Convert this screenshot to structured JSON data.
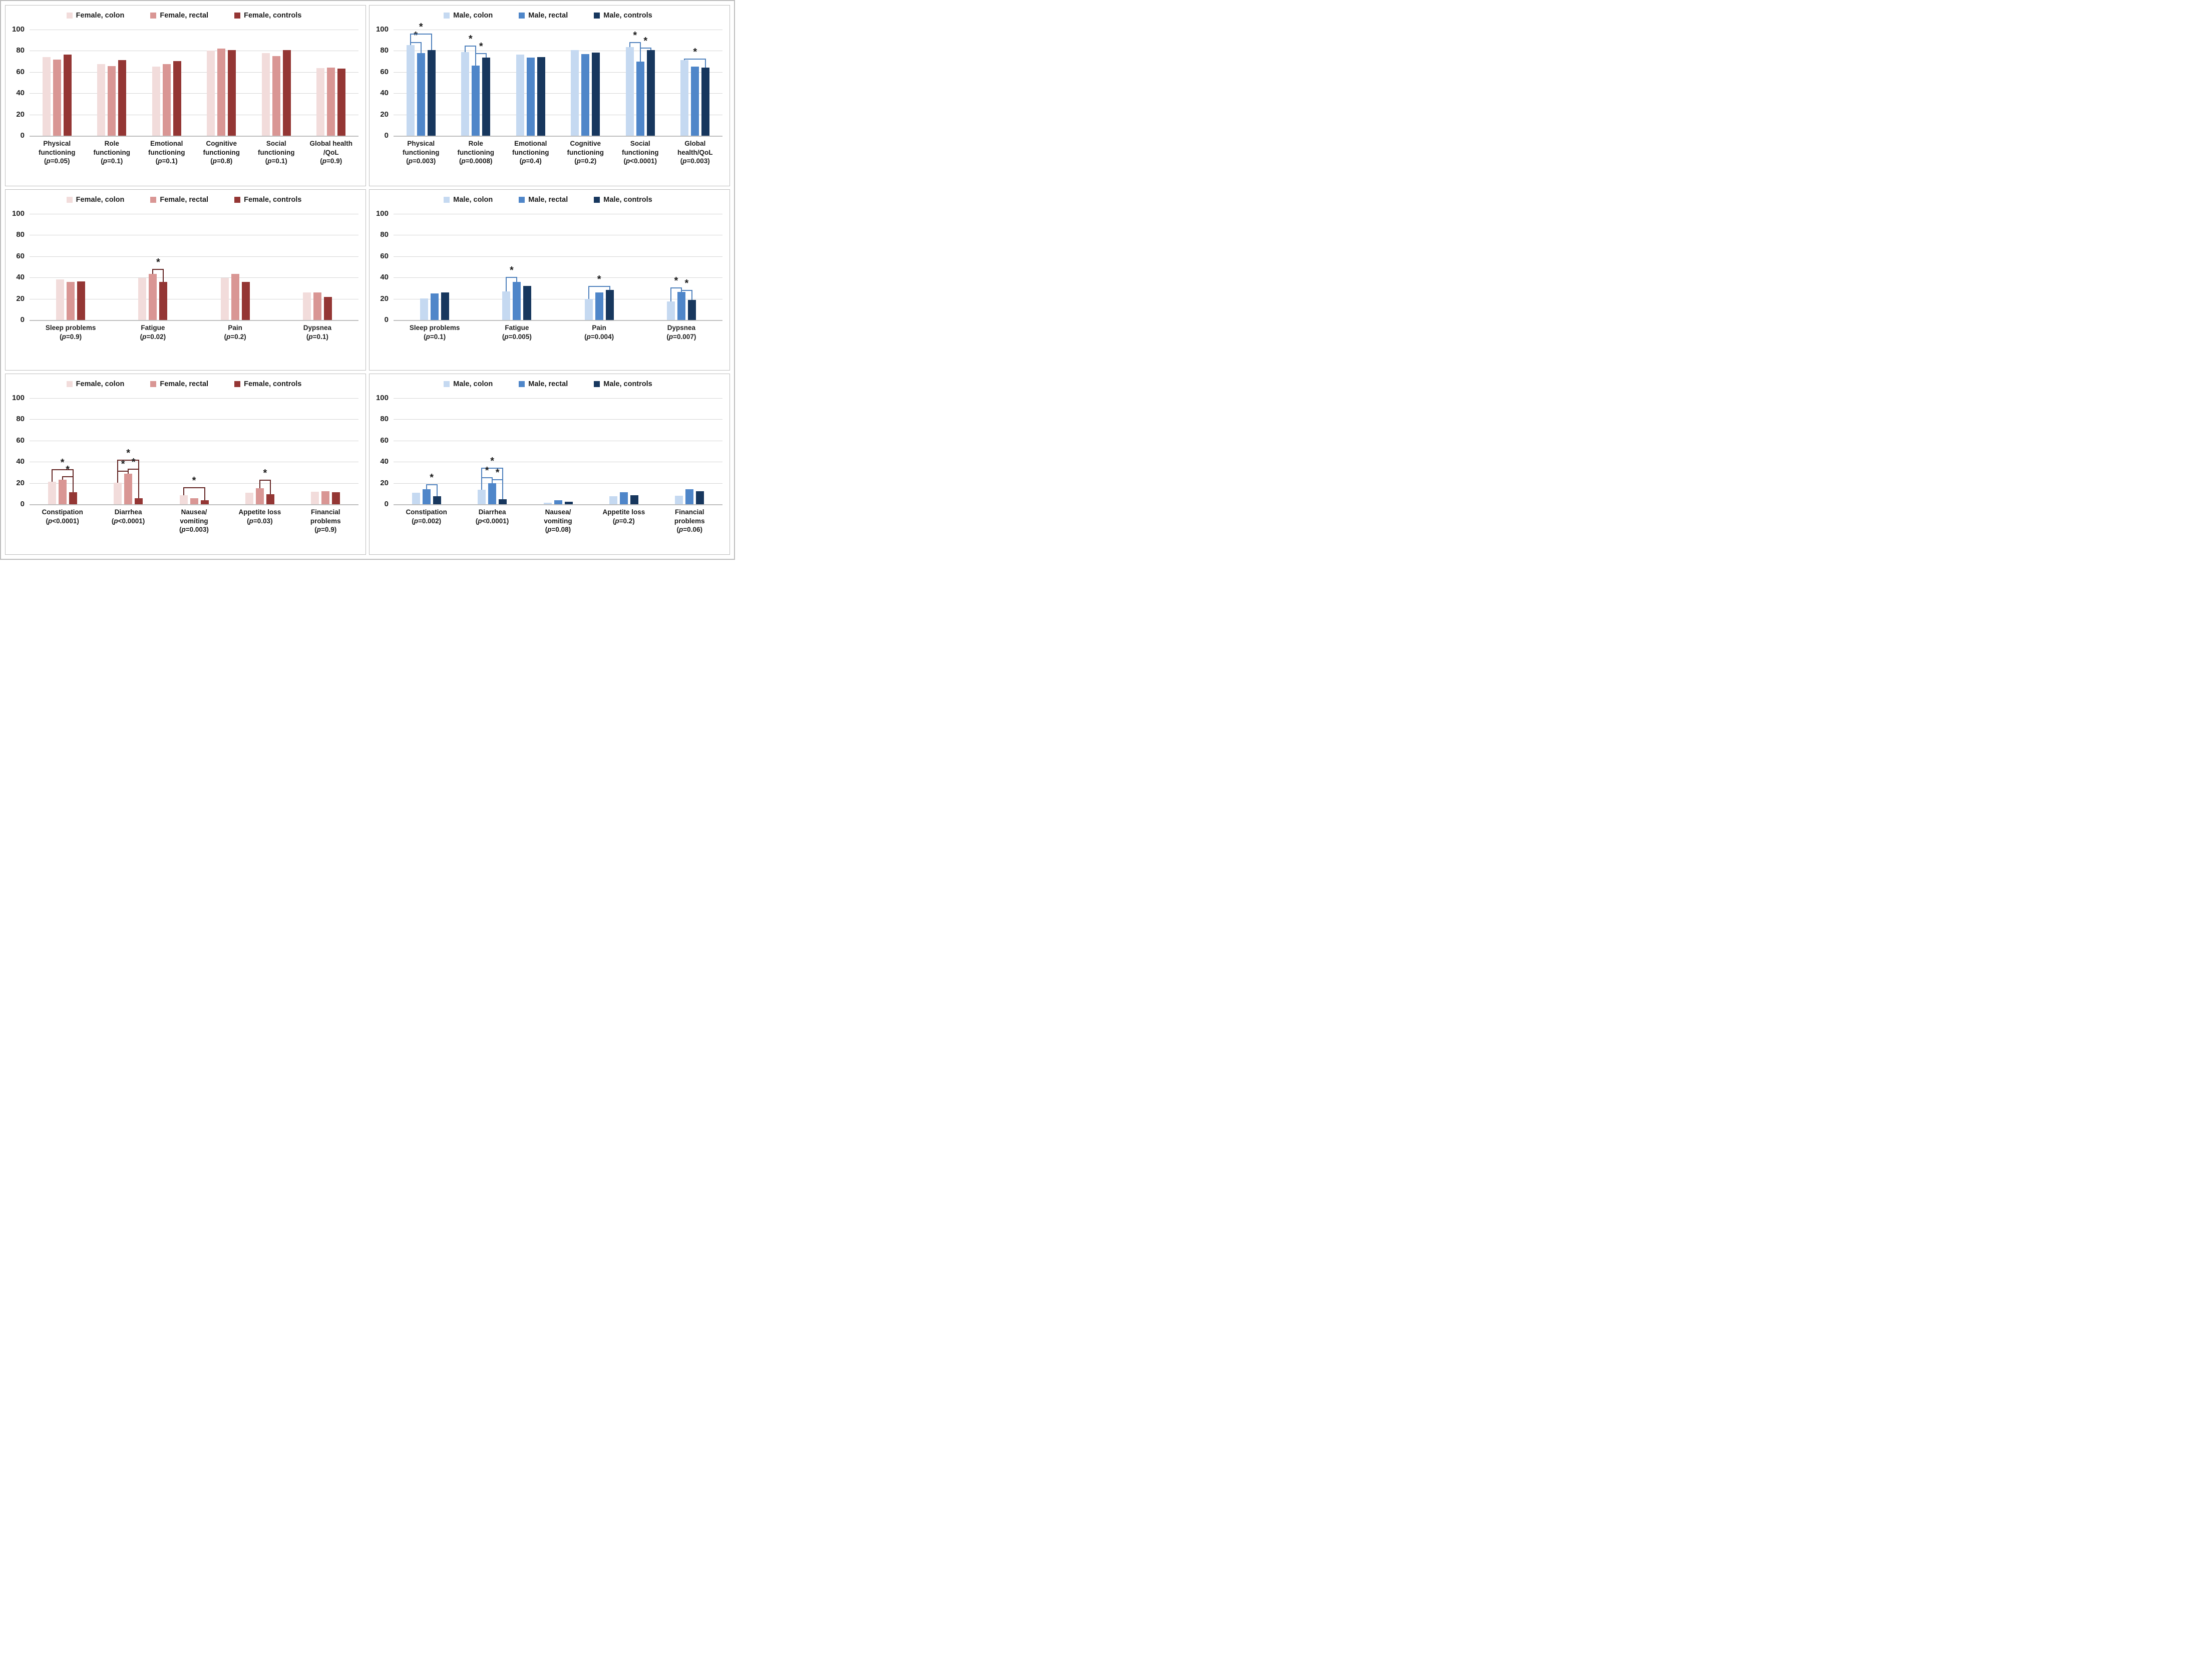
{
  "figure": {
    "background": "#ffffff",
    "panel_border": "#bdbdbd",
    "grid_color": "#d6d6d6",
    "baseline_color": "#bfbfbf",
    "text_color": "#1a1a1a",
    "sig_symbol": "*"
  },
  "chart_data": [
    {
      "id": "female-functioning",
      "type": "bar",
      "title": "",
      "legend_position": "top",
      "grid": true,
      "ylim": [
        0,
        100
      ],
      "yticks": [
        0,
        20,
        40,
        60,
        80,
        100
      ],
      "series_names": [
        "Female, colon",
        "Female, rectal",
        "Female, controls"
      ],
      "colors": [
        "#f2dcdb",
        "#d99694",
        "#943634"
      ],
      "bracket_color": "#632423",
      "categories": [
        {
          "lines": [
            "Physical",
            "functioning"
          ],
          "p": "(p=0.05)",
          "values": [
            74,
            71.5,
            76.5
          ],
          "brackets": []
        },
        {
          "lines": [
            "Role",
            "functioning"
          ],
          "p": "(p=0.1)",
          "values": [
            67.5,
            65.5,
            71
          ],
          "brackets": []
        },
        {
          "lines": [
            "Emotional",
            "functioning"
          ],
          "p": "(p=0.1)",
          "values": [
            65,
            67.5,
            70.5
          ],
          "brackets": []
        },
        {
          "lines": [
            "Cognitive",
            "functioning"
          ],
          "p": "(p=0.8)",
          "values": [
            80,
            82,
            80.5
          ],
          "brackets": []
        },
        {
          "lines": [
            "Social",
            "functioning"
          ],
          "p": "(p=0.1)",
          "values": [
            78,
            75,
            80.5
          ],
          "brackets": []
        },
        {
          "lines": [
            "Global health",
            "/QoL"
          ],
          "p": "(p=0.9)",
          "values": [
            63.5,
            64,
            63
          ],
          "brackets": []
        }
      ]
    },
    {
      "id": "male-functioning",
      "type": "bar",
      "title": "",
      "legend_position": "top",
      "grid": true,
      "ylim": [
        0,
        100
      ],
      "yticks": [
        0,
        20,
        40,
        60,
        80,
        100
      ],
      "series_names": [
        "Male, colon",
        "Male, rectal",
        "Male, controls"
      ],
      "colors": [
        "#c5d9f1",
        "#4f86c9",
        "#17375e"
      ],
      "bracket_color": "#4f81bd",
      "categories": [
        {
          "lines": [
            "Physical",
            "functioning"
          ],
          "p": "(p=0.003)",
          "values": [
            85.5,
            78,
            80.5
          ],
          "brackets": [
            {
              "a": 0,
              "b": 1,
              "y": 88
            },
            {
              "a": 0,
              "b": 2,
              "y": 96
            }
          ]
        },
        {
          "lines": [
            "Role",
            "functioning"
          ],
          "p": "(p=0.0008)",
          "values": [
            79,
            66,
            73.5
          ],
          "brackets": [
            {
              "a": 0,
              "b": 1,
              "y": 85
            },
            {
              "a": 1,
              "b": 2,
              "y": 78
            }
          ]
        },
        {
          "lines": [
            "Emotional",
            "functioning"
          ],
          "p": "(p=0.4)",
          "values": [
            76.5,
            73.5,
            74
          ],
          "brackets": []
        },
        {
          "lines": [
            "Cognitive",
            "functioning"
          ],
          "p": "(p=0.2)",
          "values": [
            80.5,
            77,
            78.5
          ],
          "brackets": []
        },
        {
          "lines": [
            "Social",
            "functioning"
          ],
          "p": "(p<0.0001)",
          "values": [
            83.5,
            70,
            80.5
          ],
          "brackets": [
            {
              "a": 0,
              "b": 1,
              "y": 88
            },
            {
              "a": 1,
              "b": 2,
              "y": 83
            }
          ]
        },
        {
          "lines": [
            "Global",
            "health/QoL"
          ],
          "p": "(p=0.003)",
          "values": [
            71,
            65,
            64
          ],
          "brackets": [
            {
              "a": 0,
              "b": 2,
              "y": 72.5
            }
          ]
        }
      ]
    },
    {
      "id": "female-symptoms-1",
      "type": "bar",
      "title": "",
      "legend_position": "top",
      "grid": true,
      "ylim": [
        0,
        100
      ],
      "yticks": [
        0,
        20,
        40,
        60,
        80,
        100
      ],
      "series_names": [
        "Female, colon",
        "Female, rectal",
        "Female, controls"
      ],
      "colors": [
        "#f2dcdb",
        "#d99694",
        "#943634"
      ],
      "bracket_color": "#632423",
      "categories": [
        {
          "lines": [
            "Sleep problems"
          ],
          "p": "(p=0.9)",
          "values": [
            38,
            36,
            36.5
          ],
          "brackets": []
        },
        {
          "lines": [
            "Fatigue"
          ],
          "p": "(p=0.02)",
          "values": [
            39.5,
            43.5,
            36
          ],
          "brackets": [
            {
              "a": 1,
              "b": 2,
              "y": 48
            }
          ]
        },
        {
          "lines": [
            "Pain"
          ],
          "p": "(p=0.2)",
          "values": [
            39.5,
            43.5,
            36
          ],
          "brackets": []
        },
        {
          "lines": [
            "Dypsnea"
          ],
          "p": "(p=0.1)",
          "values": [
            26,
            26,
            21.5
          ],
          "brackets": []
        }
      ]
    },
    {
      "id": "male-symptoms-1",
      "type": "bar",
      "title": "",
      "legend_position": "top",
      "grid": true,
      "ylim": [
        0,
        100
      ],
      "yticks": [
        0,
        20,
        40,
        60,
        80,
        100
      ],
      "series_names": [
        "Male, colon",
        "Male, rectal",
        "Male, controls"
      ],
      "colors": [
        "#c5d9f1",
        "#4f86c9",
        "#17375e"
      ],
      "bracket_color": "#4f81bd",
      "categories": [
        {
          "lines": [
            "Sleep problems"
          ],
          "p": "(p=0.1)",
          "values": [
            20.5,
            25,
            26
          ],
          "brackets": []
        },
        {
          "lines": [
            "Fatigue"
          ],
          "p": "(p=0.005)",
          "values": [
            27,
            36,
            32
          ],
          "brackets": [
            {
              "a": 0,
              "b": 1,
              "y": 40.5
            }
          ]
        },
        {
          "lines": [
            "Pain"
          ],
          "p": "(p=0.004)",
          "values": [
            20,
            26,
            28.5
          ],
          "brackets": [
            {
              "a": 0,
              "b": 2,
              "y": 32
            }
          ]
        },
        {
          "lines": [
            "Dypsnea"
          ],
          "p": "(p=0.007)",
          "values": [
            17.5,
            26.5,
            19
          ],
          "brackets": [
            {
              "a": 0,
              "b": 1,
              "y": 30.5
            },
            {
              "a": 1,
              "b": 2,
              "y": 28.5
            }
          ]
        }
      ]
    },
    {
      "id": "female-symptoms-2",
      "type": "bar",
      "title": "",
      "legend_position": "top",
      "grid": true,
      "ylim": [
        0,
        100
      ],
      "yticks": [
        0,
        20,
        40,
        60,
        80,
        100
      ],
      "series_names": [
        "Female, colon",
        "Female, rectal",
        "Female, controls"
      ],
      "colors": [
        "#f2dcdb",
        "#d99694",
        "#943634"
      ],
      "bracket_color": "#632423",
      "categories": [
        {
          "lines": [
            "Constipation"
          ],
          "p": "(p<0.0001)",
          "values": [
            21,
            23,
            11.5
          ],
          "brackets": [
            {
              "a": 0,
              "b": 2,
              "y": 33
            },
            {
              "a": 1,
              "b": 2,
              "y": 26.5
            }
          ]
        },
        {
          "lines": [
            "Diarrhea"
          ],
          "p": "(p<0.0001)",
          "values": [
            20.5,
            29,
            5.5
          ],
          "brackets": [
            {
              "a": 0,
              "b": 2,
              "y": 42
            },
            {
              "a": 0,
              "b": 1,
              "y": 31.5
            },
            {
              "a": 1,
              "b": 2,
              "y": 33.5
            }
          ]
        },
        {
          "lines": [
            "Nausea/",
            "vomiting"
          ],
          "p": "(p=0.003)",
          "values": [
            8.5,
            5.5,
            4
          ],
          "brackets": [
            {
              "a": 0,
              "b": 2,
              "y": 16
            }
          ]
        },
        {
          "lines": [
            "Appetite loss"
          ],
          "p": "(p=0.03)",
          "values": [
            11,
            15,
            9.5
          ],
          "brackets": [
            {
              "a": 1,
              "b": 2,
              "y": 23
            }
          ]
        },
        {
          "lines": [
            "Financial",
            "problems"
          ],
          "p": "(p=0.9)",
          "values": [
            12,
            12.5,
            11.5
          ],
          "brackets": []
        }
      ]
    },
    {
      "id": "male-symptoms-2",
      "type": "bar",
      "title": "",
      "legend_position": "top",
      "grid": true,
      "ylim": [
        0,
        100
      ],
      "yticks": [
        0,
        20,
        40,
        60,
        80,
        100
      ],
      "series_names": [
        "Male, colon",
        "Male, rectal",
        "Male, controls"
      ],
      "colors": [
        "#c5d9f1",
        "#4f86c9",
        "#17375e"
      ],
      "bracket_color": "#4f81bd",
      "categories": [
        {
          "lines": [
            "Constipation"
          ],
          "p": "(p=0.002)",
          "values": [
            11,
            14,
            7.5
          ],
          "brackets": [
            {
              "a": 1,
              "b": 2,
              "y": 19
            }
          ]
        },
        {
          "lines": [
            "Diarrhea"
          ],
          "p": "(p<0.0001)",
          "values": [
            13.5,
            20,
            4.5
          ],
          "brackets": [
            {
              "a": 0,
              "b": 2,
              "y": 34.5
            },
            {
              "a": 0,
              "b": 1,
              "y": 25.5
            },
            {
              "a": 1,
              "b": 2,
              "y": 23.5
            }
          ]
        },
        {
          "lines": [
            "Nausea/",
            "vomiting"
          ],
          "p": "(p=0.08)",
          "values": [
            1.5,
            4,
            2.5
          ],
          "brackets": []
        },
        {
          "lines": [
            "Appetite loss"
          ],
          "p": "(p=0.2)",
          "values": [
            7.5,
            11.5,
            8.5
          ],
          "brackets": []
        },
        {
          "lines": [
            "Financial",
            "problems"
          ],
          "p": "(p=0.06)",
          "values": [
            8,
            14,
            12.5
          ],
          "brackets": []
        }
      ]
    }
  ]
}
